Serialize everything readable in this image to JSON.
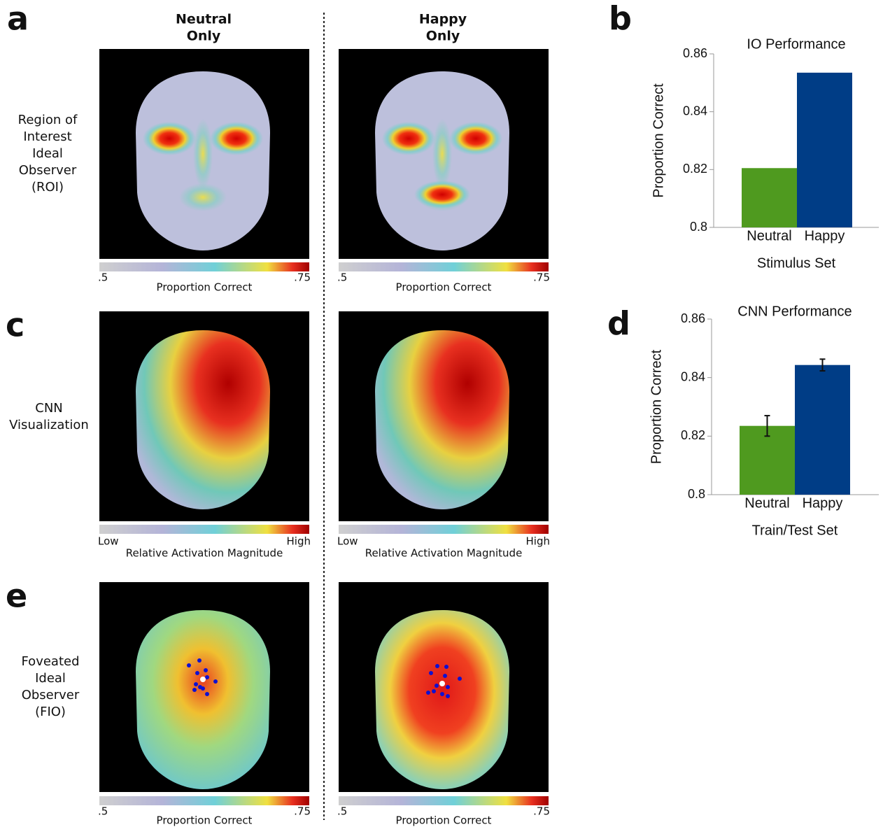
{
  "figure": {
    "panel_labels": [
      "a",
      "b",
      "c",
      "d",
      "e"
    ],
    "column_headers": [
      [
        "Neutral",
        "Only"
      ],
      [
        "Happy",
        "Only"
      ]
    ],
    "row_labels": [
      [
        "Region of",
        "Interest",
        "Ideal",
        "Observer",
        "(ROI)"
      ],
      [
        "CNN",
        "Visualization"
      ],
      [
        "Foveated",
        "Ideal",
        "Observer",
        "(FIO)"
      ]
    ],
    "colorbars": [
      {
        "low": ".5",
        "high": ".75",
        "label": "Proportion Correct"
      },
      {
        "low": "Low",
        "high": "High",
        "label": "Relative Activation Magnitude"
      }
    ]
  },
  "chart_data": [
    {
      "type": "bar",
      "title": "IO Performance",
      "y_label": "Proportion Correct",
      "x_label": "Stimulus Set",
      "categories": [
        "Neutral",
        "Happy"
      ],
      "values": [
        0.8205,
        0.8535
      ],
      "colors": [
        "#4f9a1f",
        "#003d86"
      ],
      "ylim": [
        0.8,
        0.86
      ],
      "yticks": [
        0.8,
        0.82,
        0.84,
        0.86
      ]
    },
    {
      "type": "bar",
      "title": "CNN Performance",
      "y_label": "Proportion Correct",
      "x_label": "Train/Test Set",
      "categories": [
        "Neutral",
        "Happy"
      ],
      "values": [
        0.8235,
        0.8443
      ],
      "errors": [
        0.0035,
        0.002
      ],
      "colors": [
        "#4f9a1f",
        "#003d86"
      ],
      "ylim": [
        0.8,
        0.86
      ],
      "yticks": [
        0.8,
        0.82,
        0.84,
        0.86
      ]
    }
  ]
}
